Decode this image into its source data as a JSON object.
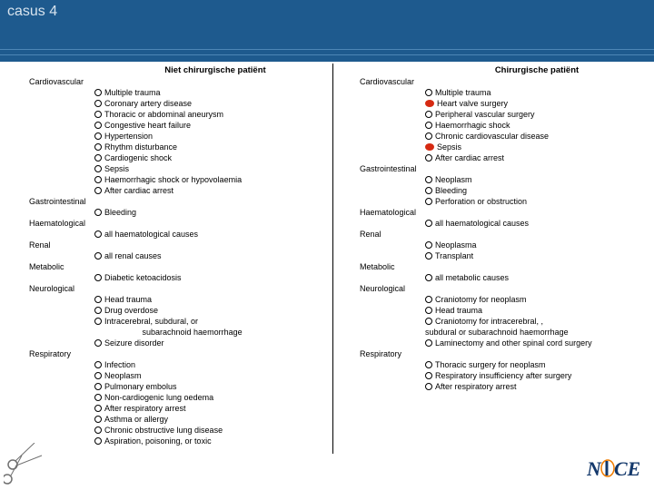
{
  "header": {
    "title": "casus 4",
    "bg_color": "#1e5a8e",
    "title_color": "#d7e3ee",
    "line_color": "#4d86b6"
  },
  "divider_color": "#000000",
  "bullet_open_border": "#000000",
  "bullet_red_fill": "#d62a12",
  "left": {
    "title": "Niet chirurgische patiënt",
    "sections": [
      {
        "name": "Cardiovascular",
        "items": [
          {
            "m": "open",
            "t": "Multiple trauma"
          },
          {
            "m": "open",
            "t": "Coronary artery disease"
          },
          {
            "m": "open",
            "t": "Thoracic or abdominal aneurysm"
          },
          {
            "m": "open",
            "t": "Congestive heart failure"
          },
          {
            "m": "open",
            "t": "Hypertension"
          },
          {
            "m": "open",
            "t": "Rhythm disturbance"
          },
          {
            "m": "open",
            "t": "Cardiogenic shock"
          },
          {
            "m": "open",
            "t": "Sepsis"
          },
          {
            "m": "open",
            "t": "Haemorrhagic shock or hypovolaemia"
          },
          {
            "m": "open",
            "t": "After cardiac arrest"
          }
        ]
      },
      {
        "name": "Gastrointestinal",
        "items": [
          {
            "m": "open",
            "t": "Bleeding"
          }
        ]
      },
      {
        "name": "Haematological",
        "items": [
          {
            "m": "open",
            "t": "all haematological causes"
          }
        ]
      },
      {
        "name": "Renal",
        "items": [
          {
            "m": "open",
            "t": "all renal causes"
          }
        ]
      },
      {
        "name": "Metabolic",
        "items": [
          {
            "m": "open",
            "t": "Diabetic ketoacidosis"
          }
        ]
      },
      {
        "name": "Neurological",
        "items": [
          {
            "m": "open",
            "t": "Head trauma"
          },
          {
            "m": "open",
            "t": "Drug overdose"
          },
          {
            "m": "open",
            "t": "Intracerebral, subdural, or"
          },
          {
            "m": "none",
            "t": "                     subarachnoid haemorrhage"
          },
          {
            "m": "open",
            "t": "Seizure disorder"
          }
        ]
      },
      {
        "name": "Respiratory",
        "items": [
          {
            "m": "open",
            "t": "Infection"
          },
          {
            "m": "open",
            "t": "Neoplasm"
          },
          {
            "m": "open",
            "t": "Pulmonary embolus"
          },
          {
            "m": "open",
            "t": "Non-cardiogenic lung oedema"
          },
          {
            "m": "open",
            "t": "After respiratory arrest"
          },
          {
            "m": "open",
            "t": "Asthma or allergy"
          },
          {
            "m": "open",
            "t": "Chronic obstructive lung disease"
          },
          {
            "m": "open",
            "t": "Aspiration, poisoning, or toxic"
          }
        ]
      }
    ]
  },
  "right": {
    "title": "Chirurgische patiënt",
    "sections": [
      {
        "name": "Cardiovascular",
        "items": [
          {
            "m": "open",
            "t": "Multiple trauma"
          },
          {
            "m": "red",
            "t": "Heart valve surgery"
          },
          {
            "m": "open",
            "t": "Peripheral vascular surgery"
          },
          {
            "m": "open",
            "t": "Haemorrhagic shock"
          },
          {
            "m": "open",
            "t": "Chronic cardiovascular disease"
          },
          {
            "m": "red",
            "t": "Sepsis"
          },
          {
            "m": "open",
            "t": "After cardiac arrest"
          }
        ]
      },
      {
        "name": "Gastrointestinal",
        "items": [
          {
            "m": "open",
            "t": "Neoplasm"
          },
          {
            "m": "open",
            "t": "Bleeding"
          },
          {
            "m": "open",
            "t": "Perforation or obstruction"
          }
        ]
      },
      {
        "name": "Haematological",
        "items": [
          {
            "m": "open",
            "t": "all haematological causes"
          }
        ]
      },
      {
        "name": "Renal",
        "items": [
          {
            "m": "open",
            "t": "Neoplasma"
          },
          {
            "m": "open",
            "t": "Transplant"
          }
        ]
      },
      {
        "name": "Metabolic",
        "items": [
          {
            "m": "open",
            "t": "all metabolic causes"
          }
        ]
      },
      {
        "name": "Neurological",
        "items": [
          {
            "m": "open",
            "t": "Craniotomy for neoplasm"
          },
          {
            "m": "open",
            "t": "Head trauma"
          },
          {
            "m": "open",
            "t": "Craniotomy for intracerebral, ,"
          },
          {
            "m": "none",
            "t": "subdural or subarachnoid haemorrhage"
          },
          {
            "m": "open",
            "t": "Laminectomy and other spinal cord surgery"
          }
        ]
      },
      {
        "name": "Respiratory",
        "items": [
          {
            "m": "open",
            "t": "Thoracic surgery for neoplasm"
          },
          {
            "m": "open",
            "t": "Respiratory insufficiency after surgery"
          },
          {
            "m": "open",
            "t": "After respiratory arrest"
          }
        ]
      }
    ]
  },
  "logo": {
    "text": "NICE",
    "main_color": "#13386b",
    "accent_color": "#f07c00"
  }
}
